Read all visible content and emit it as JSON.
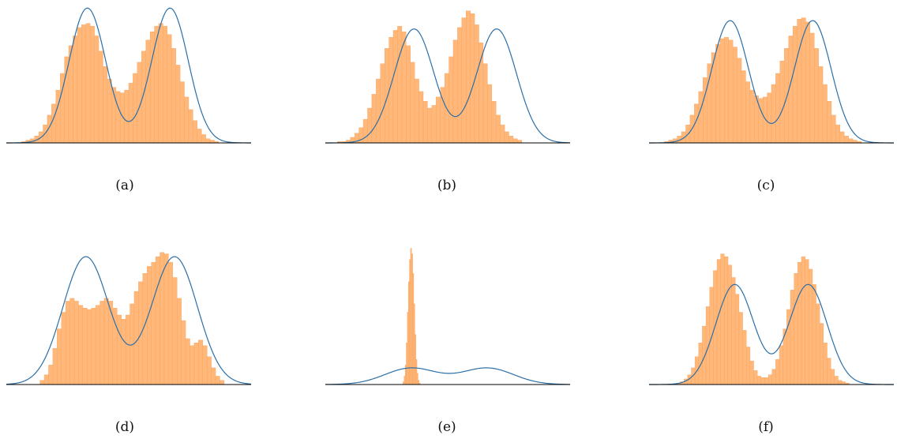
{
  "colors": {
    "histogram": "#ffb77a",
    "histogram_edge": "#f7a35c",
    "density": "#2b6fa8",
    "baseline": "#000000"
  },
  "chart_data": [
    {
      "type": "histogram",
      "label": "(a)",
      "xlim": [
        -4,
        4
      ],
      "density": {
        "weights": [
          0.5,
          0.5
        ],
        "means": [
          -1.35,
          1.35
        ],
        "std": 0.6,
        "peak_fraction": 0.97
      },
      "bins": {
        "start": -3.5,
        "width": 0.14,
        "heights": [
          0.01,
          0.02,
          0.03,
          0.05,
          0.08,
          0.13,
          0.2,
          0.28,
          0.38,
          0.5,
          0.62,
          0.7,
          0.77,
          0.83,
          0.85,
          0.86,
          0.84,
          0.77,
          0.66,
          0.55,
          0.46,
          0.4,
          0.37,
          0.36,
          0.38,
          0.43,
          0.5,
          0.58,
          0.66,
          0.74,
          0.8,
          0.84,
          0.86,
          0.84,
          0.78,
          0.68,
          0.56,
          0.44,
          0.33,
          0.24,
          0.16,
          0.1,
          0.06,
          0.03,
          0.02,
          0.01
        ]
      }
    },
    {
      "type": "histogram",
      "label": "(b)",
      "xlim": [
        -4,
        4
      ],
      "density": {
        "weights": [
          0.5,
          0.5
        ],
        "means": [
          -1.1,
          1.6
        ],
        "std": 0.65,
        "peak_fraction": 0.82
      },
      "bins": {
        "start": -3.6,
        "width": 0.14,
        "heights": [
          0.01,
          0.01,
          0.02,
          0.04,
          0.07,
          0.11,
          0.17,
          0.25,
          0.35,
          0.46,
          0.57,
          0.68,
          0.76,
          0.81,
          0.84,
          0.8,
          0.7,
          0.58,
          0.46,
          0.37,
          0.3,
          0.25,
          0.27,
          0.33,
          0.4,
          0.5,
          0.62,
          0.74,
          0.83,
          0.9,
          0.95,
          0.93,
          0.85,
          0.72,
          0.57,
          0.42,
          0.3,
          0.2,
          0.13,
          0.08,
          0.05,
          0.03,
          0.02
        ]
      }
    },
    {
      "type": "histogram",
      "label": "(c)",
      "xlim": [
        -4,
        4
      ],
      "density": {
        "weights": [
          0.5,
          0.5
        ],
        "means": [
          -1.35,
          1.35
        ],
        "std": 0.6,
        "peak_fraction": 0.88
      },
      "bins": {
        "start": -3.5,
        "width": 0.14,
        "heights": [
          0.01,
          0.02,
          0.03,
          0.05,
          0.08,
          0.13,
          0.2,
          0.28,
          0.37,
          0.47,
          0.57,
          0.65,
          0.71,
          0.75,
          0.76,
          0.74,
          0.69,
          0.61,
          0.52,
          0.44,
          0.38,
          0.34,
          0.32,
          0.33,
          0.36,
          0.42,
          0.5,
          0.59,
          0.68,
          0.77,
          0.84,
          0.89,
          0.9,
          0.87,
          0.79,
          0.68,
          0.55,
          0.42,
          0.3,
          0.2,
          0.13,
          0.08,
          0.05,
          0.03,
          0.02,
          0.01
        ]
      }
    },
    {
      "type": "histogram",
      "label": "(d)",
      "xlim": [
        -4,
        4
      ],
      "density": {
        "weights": [
          0.5,
          0.5
        ],
        "means": [
          -1.4,
          1.5
        ],
        "std": 0.75,
        "peak_fraction": 0.92
      },
      "bins": {
        "start": -2.9,
        "width": 0.14,
        "heights": [
          0.03,
          0.07,
          0.14,
          0.26,
          0.4,
          0.52,
          0.6,
          0.62,
          0.6,
          0.57,
          0.55,
          0.54,
          0.55,
          0.57,
          0.6,
          0.62,
          0.6,
          0.55,
          0.5,
          0.47,
          0.5,
          0.58,
          0.67,
          0.74,
          0.8,
          0.85,
          0.88,
          0.92,
          0.95,
          0.94,
          0.88,
          0.77,
          0.62,
          0.46,
          0.33,
          0.28,
          0.3,
          0.32,
          0.28,
          0.2,
          0.12,
          0.06,
          0.03
        ]
      }
    },
    {
      "type": "histogram",
      "label": "(e)",
      "xlim": [
        -4,
        4
      ],
      "density": {
        "weights": [
          0.5,
          0.5
        ],
        "means": [
          -1.2,
          1.3
        ],
        "std": 0.85,
        "peak_fraction": 0.12
      },
      "bins": {
        "start": -1.46,
        "width": 0.035,
        "heights": [
          0.02,
          0.06,
          0.14,
          0.3,
          0.52,
          0.74,
          0.9,
          0.98,
          0.94,
          0.8,
          0.58,
          0.36,
          0.18,
          0.08,
          0.03,
          0.01
        ]
      }
    },
    {
      "type": "histogram",
      "label": "(f)",
      "xlim": [
        -4,
        4
      ],
      "density": {
        "weights": [
          0.5,
          0.5
        ],
        "means": [
          -1.2,
          1.2
        ],
        "std": 0.62,
        "peak_fraction": 0.72
      },
      "bins": {
        "start": -3.1,
        "width": 0.12,
        "heights": [
          0.01,
          0.02,
          0.04,
          0.07,
          0.12,
          0.2,
          0.3,
          0.42,
          0.56,
          0.7,
          0.82,
          0.9,
          0.94,
          0.92,
          0.86,
          0.77,
          0.65,
          0.52,
          0.39,
          0.27,
          0.17,
          0.1,
          0.06,
          0.05,
          0.05,
          0.07,
          0.11,
          0.18,
          0.28,
          0.4,
          0.54,
          0.68,
          0.8,
          0.88,
          0.92,
          0.9,
          0.83,
          0.72,
          0.58,
          0.44,
          0.3,
          0.19,
          0.11,
          0.06,
          0.03,
          0.02,
          0.01
        ]
      }
    }
  ]
}
